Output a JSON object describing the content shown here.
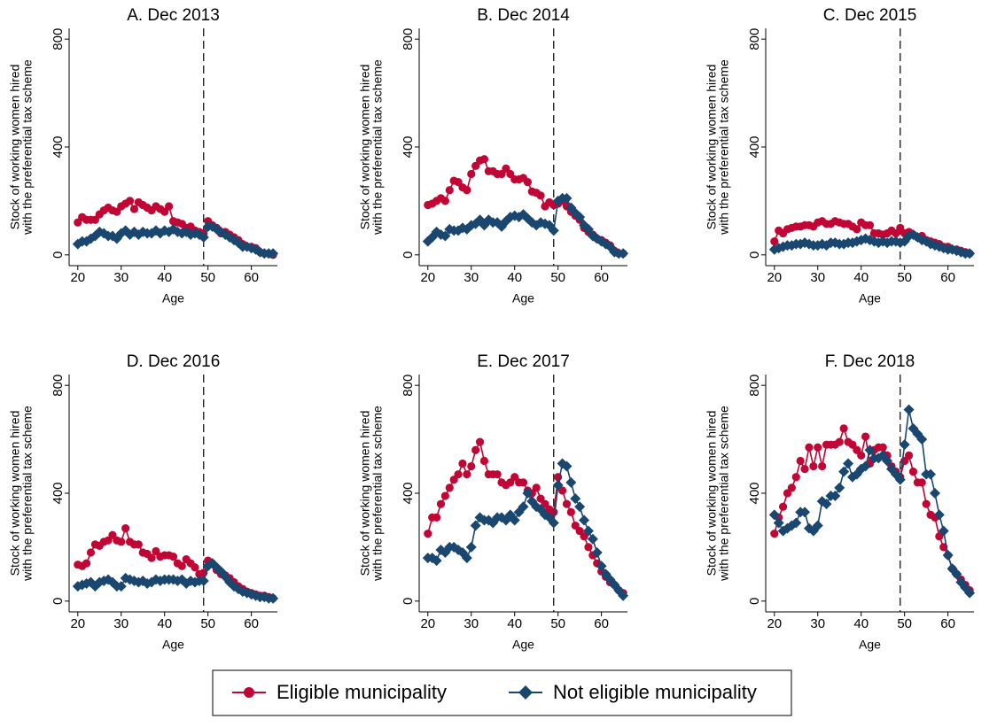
{
  "chart_data": [
    {
      "type": "line",
      "title": "A. Dec 2013",
      "xlabel": "Age",
      "ylabel": [
        "Stock of working women hired",
        "with the preferential tax scheme"
      ],
      "x": [
        20,
        21,
        22,
        23,
        24,
        25,
        26,
        27,
        28,
        29,
        30,
        31,
        32,
        33,
        34,
        35,
        36,
        37,
        38,
        39,
        40,
        41,
        42,
        43,
        44,
        45,
        46,
        47,
        48,
        49,
        50,
        51,
        52,
        53,
        54,
        55,
        56,
        57,
        58,
        59,
        60,
        61,
        62,
        63,
        64,
        65
      ],
      "xlim": [
        18,
        66
      ],
      "xticks": [
        20,
        30,
        40,
        50,
        60
      ],
      "ylim": [
        -40,
        840
      ],
      "yticks": [
        0,
        400,
        800
      ],
      "vline": 49,
      "series": [
        {
          "name": "Eligible municipality",
          "color": "#c10534",
          "marker": "circle",
          "values": [
            120,
            140,
            130,
            130,
            130,
            150,
            165,
            175,
            165,
            160,
            180,
            190,
            200,
            170,
            195,
            185,
            175,
            165,
            180,
            170,
            160,
            180,
            125,
            120,
            115,
            100,
            105,
            90,
            85,
            80,
            125,
            110,
            100,
            80,
            85,
            75,
            65,
            55,
            40,
            30,
            30,
            25,
            10,
            5,
            5,
            0
          ]
        },
        {
          "name": "Not eligible municipality",
          "color": "#1a476f",
          "marker": "diamond",
          "values": [
            40,
            50,
            50,
            60,
            70,
            85,
            80,
            70,
            70,
            60,
            80,
            90,
            75,
            85,
            75,
            85,
            80,
            80,
            90,
            80,
            90,
            85,
            95,
            85,
            80,
            85,
            75,
            80,
            75,
            65,
            105,
            105,
            95,
            85,
            75,
            65,
            55,
            45,
            30,
            30,
            25,
            20,
            10,
            5,
            5,
            5
          ]
        }
      ]
    },
    {
      "type": "line",
      "title": "B. Dec 2014",
      "xlabel": "Age",
      "ylabel": [
        "Stock of working women hired",
        "with the preferential tax scheme"
      ],
      "x": [
        20,
        21,
        22,
        23,
        24,
        25,
        26,
        27,
        28,
        29,
        30,
        31,
        32,
        33,
        34,
        35,
        36,
        37,
        38,
        39,
        40,
        41,
        42,
        43,
        44,
        45,
        46,
        47,
        48,
        49,
        50,
        51,
        52,
        53,
        54,
        55,
        56,
        57,
        58,
        59,
        60,
        61,
        62,
        63,
        64,
        65
      ],
      "xlim": [
        18,
        66
      ],
      "xticks": [
        20,
        30,
        40,
        50,
        60
      ],
      "ylim": [
        -40,
        840
      ],
      "yticks": [
        0,
        400,
        800
      ],
      "vline": 49,
      "series": [
        {
          "name": "Eligible municipality",
          "color": "#c10534",
          "marker": "circle",
          "values": [
            185,
            190,
            200,
            210,
            200,
            240,
            275,
            270,
            250,
            240,
            300,
            330,
            350,
            355,
            310,
            310,
            300,
            300,
            320,
            300,
            280,
            280,
            285,
            270,
            235,
            230,
            220,
            180,
            195,
            185,
            190,
            200,
            180,
            160,
            145,
            130,
            100,
            85,
            75,
            60,
            55,
            45,
            35,
            15,
            5,
            5
          ]
        },
        {
          "name": "Not eligible municipality",
          "color": "#1a476f",
          "marker": "diamond",
          "values": [
            50,
            65,
            85,
            75,
            70,
            95,
            90,
            90,
            100,
            95,
            110,
            115,
            130,
            110,
            130,
            120,
            120,
            105,
            125,
            140,
            145,
            140,
            150,
            135,
            120,
            110,
            120,
            115,
            110,
            90,
            200,
            210,
            210,
            175,
            155,
            140,
            110,
            95,
            70,
            60,
            50,
            40,
            30,
            10,
            5,
            5
          ]
        }
      ]
    },
    {
      "type": "line",
      "title": "C. Dec 2015",
      "xlabel": "Age",
      "ylabel": [
        "Stock of working women hired",
        "with the preferential tax scheme"
      ],
      "x": [
        20,
        21,
        22,
        23,
        24,
        25,
        26,
        27,
        28,
        29,
        30,
        31,
        32,
        33,
        34,
        35,
        36,
        37,
        38,
        39,
        40,
        41,
        42,
        43,
        44,
        45,
        46,
        47,
        48,
        49,
        50,
        51,
        52,
        53,
        54,
        55,
        56,
        57,
        58,
        59,
        60,
        61,
        62,
        63,
        64,
        65
      ],
      "xlim": [
        18,
        66
      ],
      "xticks": [
        20,
        30,
        40,
        50,
        60
      ],
      "ylim": [
        -40,
        840
      ],
      "yticks": [
        0,
        400,
        800
      ],
      "vline": 49,
      "series": [
        {
          "name": "Eligible municipality",
          "color": "#c10534",
          "marker": "circle",
          "values": [
            50,
            90,
            80,
            95,
            100,
            105,
            105,
            110,
            110,
            105,
            120,
            125,
            115,
            115,
            125,
            120,
            115,
            115,
            105,
            95,
            120,
            110,
            110,
            80,
            80,
            75,
            80,
            90,
            80,
            100,
            80,
            85,
            75,
            65,
            70,
            55,
            50,
            45,
            40,
            30,
            30,
            20,
            20,
            15,
            10,
            5
          ]
        },
        {
          "name": "Not eligible municipality",
          "color": "#1a476f",
          "marker": "diamond",
          "values": [
            20,
            25,
            30,
            35,
            35,
            40,
            40,
            45,
            40,
            35,
            35,
            40,
            35,
            45,
            45,
            40,
            40,
            45,
            45,
            50,
            55,
            60,
            55,
            50,
            45,
            50,
            45,
            50,
            50,
            45,
            50,
            70,
            75,
            65,
            55,
            50,
            40,
            35,
            30,
            25,
            20,
            20,
            15,
            10,
            5,
            5
          ]
        }
      ]
    },
    {
      "type": "line",
      "title": "D. Dec 2016",
      "xlabel": "Age",
      "ylabel": [
        "Stock of working women hired",
        "with the preferential tax scheme"
      ],
      "x": [
        20,
        21,
        22,
        23,
        24,
        25,
        26,
        27,
        28,
        29,
        30,
        31,
        32,
        33,
        34,
        35,
        36,
        37,
        38,
        39,
        40,
        41,
        42,
        43,
        44,
        45,
        46,
        47,
        48,
        49,
        50,
        51,
        52,
        53,
        54,
        55,
        56,
        57,
        58,
        59,
        60,
        61,
        62,
        63,
        64,
        65
      ],
      "xlim": [
        18,
        66
      ],
      "xticks": [
        20,
        30,
        40,
        50,
        60
      ],
      "ylim": [
        -40,
        840
      ],
      "yticks": [
        0,
        400,
        800
      ],
      "vline": 49,
      "series": [
        {
          "name": "Eligible municipality",
          "color": "#c10534",
          "marker": "circle",
          "values": [
            135,
            130,
            140,
            180,
            210,
            205,
            220,
            225,
            245,
            225,
            220,
            270,
            220,
            210,
            210,
            180,
            175,
            160,
            185,
            165,
            170,
            170,
            165,
            140,
            130,
            155,
            140,
            125,
            100,
            105,
            150,
            140,
            115,
            100,
            95,
            85,
            70,
            55,
            45,
            35,
            30,
            25,
            20,
            20,
            15,
            10
          ]
        },
        {
          "name": "Not eligible municipality",
          "color": "#1a476f",
          "marker": "diamond",
          "values": [
            55,
            60,
            65,
            70,
            55,
            70,
            75,
            80,
            70,
            55,
            55,
            85,
            80,
            75,
            70,
            75,
            65,
            70,
            80,
            75,
            80,
            80,
            80,
            75,
            80,
            65,
            75,
            70,
            75,
            75,
            130,
            140,
            125,
            110,
            90,
            70,
            55,
            45,
            35,
            30,
            25,
            20,
            15,
            15,
            10,
            10
          ]
        }
      ]
    },
    {
      "type": "line",
      "title": "E. Dec 2017",
      "xlabel": "Age",
      "ylabel": [
        "Stock of working women hired",
        "with the preferential tax scheme"
      ],
      "x": [
        20,
        21,
        22,
        23,
        24,
        25,
        26,
        27,
        28,
        29,
        30,
        31,
        32,
        33,
        34,
        35,
        36,
        37,
        38,
        39,
        40,
        41,
        42,
        43,
        44,
        45,
        46,
        47,
        48,
        49,
        50,
        51,
        52,
        53,
        54,
        55,
        56,
        57,
        58,
        59,
        60,
        61,
        62,
        63,
        64,
        65
      ],
      "xlim": [
        18,
        66
      ],
      "xticks": [
        20,
        30,
        40,
        50,
        60
      ],
      "ylim": [
        -40,
        840
      ],
      "yticks": [
        0,
        400,
        800
      ],
      "vline": 49,
      "series": [
        {
          "name": "Eligible municipality",
          "color": "#c10534",
          "marker": "circle",
          "values": [
            250,
            310,
            310,
            360,
            390,
            420,
            450,
            470,
            510,
            470,
            500,
            560,
            590,
            520,
            470,
            470,
            470,
            440,
            430,
            440,
            460,
            440,
            440,
            410,
            400,
            420,
            380,
            360,
            340,
            330,
            460,
            410,
            360,
            330,
            280,
            260,
            240,
            200,
            170,
            140,
            110,
            90,
            70,
            60,
            40,
            30
          ]
        },
        {
          "name": "Not eligible municipality",
          "color": "#1a476f",
          "marker": "diamond",
          "values": [
            160,
            160,
            150,
            190,
            180,
            200,
            200,
            190,
            180,
            160,
            200,
            280,
            310,
            300,
            300,
            290,
            310,
            310,
            300,
            320,
            300,
            330,
            350,
            400,
            370,
            350,
            340,
            320,
            310,
            290,
            430,
            510,
            500,
            440,
            380,
            350,
            300,
            260,
            230,
            180,
            130,
            100,
            80,
            60,
            40,
            20
          ]
        }
      ]
    },
    {
      "type": "line",
      "title": "F. Dec 2018",
      "xlabel": "Age",
      "ylabel": [
        "Stock of working women hired",
        "with the preferential tax scheme"
      ],
      "x": [
        20,
        21,
        22,
        23,
        24,
        25,
        26,
        27,
        28,
        29,
        30,
        31,
        32,
        33,
        34,
        35,
        36,
        37,
        38,
        39,
        40,
        41,
        42,
        43,
        44,
        45,
        46,
        47,
        48,
        49,
        50,
        51,
        52,
        53,
        54,
        55,
        56,
        57,
        58,
        59,
        60,
        61,
        62,
        63,
        64,
        65
      ],
      "xlim": [
        18,
        66
      ],
      "xticks": [
        20,
        30,
        40,
        50,
        60
      ],
      "ylim": [
        -40,
        840
      ],
      "yticks": [
        0,
        400,
        800
      ],
      "vline": 49,
      "series": [
        {
          "name": "Eligible municipality",
          "color": "#c10534",
          "marker": "circle",
          "values": [
            250,
            310,
            350,
            400,
            420,
            460,
            520,
            490,
            570,
            500,
            570,
            500,
            580,
            580,
            580,
            590,
            640,
            590,
            580,
            560,
            540,
            610,
            510,
            560,
            570,
            570,
            540,
            500,
            480,
            460,
            520,
            540,
            480,
            440,
            440,
            360,
            320,
            310,
            240,
            200,
            170,
            120,
            100,
            80,
            60,
            40
          ]
        },
        {
          "name": "Not eligible municipality",
          "color": "#1a476f",
          "marker": "diamond",
          "values": [
            320,
            290,
            260,
            270,
            280,
            290,
            330,
            330,
            270,
            260,
            280,
            370,
            360,
            390,
            390,
            420,
            480,
            510,
            460,
            470,
            490,
            500,
            560,
            530,
            530,
            540,
            520,
            490,
            470,
            450,
            580,
            710,
            640,
            620,
            600,
            470,
            470,
            400,
            320,
            260,
            170,
            120,
            100,
            70,
            50,
            30
          ]
        }
      ]
    }
  ]
}
